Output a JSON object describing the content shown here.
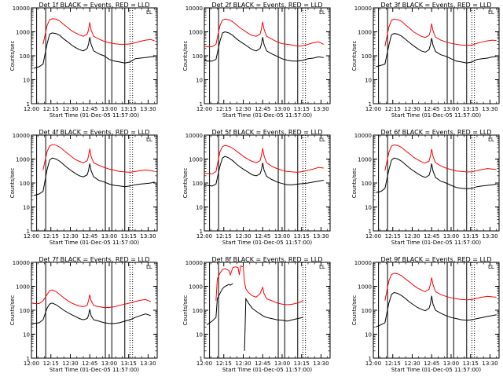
{
  "chart_data": {
    "type": "line",
    "layout": "3x3 grid",
    "common": {
      "ylabel": "Counts/sec",
      "xlabel": "Start Time (01-Dec-05 11:57:00)",
      "x_ticks": [
        "12:00",
        "12:15",
        "12:30",
        "12:45",
        "13:00",
        "13:15",
        "13:30"
      ],
      "y_ticks": [
        "1",
        "10",
        "100",
        "1000",
        "10000"
      ],
      "y_scale": "log",
      "ylim": [
        1,
        10000
      ],
      "xlim_minutes_after_1200": [
        0,
        97
      ],
      "legend_marker": "LL",
      "colors": {
        "events": "#000000",
        "lld": "#ff0000"
      }
    },
    "panels": [
      {
        "title": "Det 1f BLACK = Events, RED = LLD",
        "x": [
          2,
          6,
          9,
          12,
          14,
          16,
          19,
          22,
          25,
          28,
          31,
          34,
          37,
          40,
          43,
          44,
          45,
          46,
          48,
          52,
          56,
          60,
          64,
          68,
          72,
          76,
          80,
          84,
          88,
          92,
          95
        ],
        "events": [
          30,
          35,
          45,
          300,
          800,
          900,
          850,
          700,
          500,
          380,
          280,
          220,
          180,
          160,
          200,
          300,
          600,
          300,
          160,
          120,
          100,
          70,
          60,
          55,
          50,
          55,
          75,
          80,
          85,
          90,
          95
        ],
        "lld": [
          null,
          null,
          300,
          1800,
          3200,
          3500,
          3400,
          2800,
          2000,
          1500,
          1100,
          900,
          750,
          650,
          800,
          1200,
          2500,
          1200,
          650,
          500,
          400,
          350,
          320,
          300,
          300,
          310,
          350,
          400,
          450,
          480,
          420
        ]
      },
      {
        "title": "Det 2f BLACK = Events, RED = LLD",
        "x": [
          0,
          2,
          6,
          9,
          12,
          14,
          16,
          19,
          22,
          25,
          28,
          31,
          34,
          37,
          40,
          43,
          44,
          45,
          46,
          48,
          52,
          56,
          60,
          64,
          68,
          72,
          76,
          80,
          84,
          88,
          92
        ],
        "events": [
          70,
          60,
          60,
          70,
          400,
          900,
          1000,
          900,
          700,
          500,
          380,
          300,
          230,
          180,
          160,
          200,
          300,
          600,
          300,
          160,
          120,
          95,
          75,
          65,
          60,
          60,
          65,
          75,
          80,
          90,
          85
        ],
        "lld": [
          250,
          240,
          240,
          300,
          1800,
          3100,
          3400,
          3200,
          2600,
          1900,
          1400,
          1100,
          850,
          700,
          650,
          800,
          1300,
          2600,
          1300,
          650,
          500,
          380,
          320,
          300,
          280,
          250,
          260,
          300,
          350,
          380,
          300
        ]
      },
      {
        "title": "Det 3f BLACK = Events, RED = LLD",
        "x": [
          2,
          6,
          9,
          12,
          14,
          16,
          19,
          22,
          25,
          28,
          31,
          34,
          37,
          40,
          43,
          44,
          45,
          46,
          48,
          52,
          56,
          60,
          64,
          68,
          72,
          76,
          80,
          84,
          88,
          92,
          95
        ],
        "events": [
          35,
          40,
          45,
          280,
          750,
          850,
          800,
          650,
          480,
          350,
          260,
          200,
          160,
          140,
          180,
          280,
          550,
          280,
          150,
          110,
          95,
          75,
          60,
          55,
          50,
          55,
          70,
          75,
          80,
          90,
          95
        ],
        "lld": [
          null,
          null,
          250,
          1600,
          3000,
          3400,
          3200,
          2700,
          1900,
          1400,
          1000,
          800,
          650,
          580,
          700,
          1100,
          2200,
          1100,
          600,
          450,
          380,
          330,
          300,
          280,
          270,
          280,
          330,
          380,
          420,
          450,
          430
        ]
      },
      {
        "title": "Det 4f BLACK = Events, RED = LLD",
        "x": [
          2,
          6,
          9,
          12,
          14,
          16,
          19,
          22,
          25,
          28,
          31,
          34,
          37,
          40,
          43,
          44,
          45,
          46,
          48,
          52,
          56,
          60,
          64,
          68,
          72,
          76,
          80,
          84,
          88,
          92,
          95
        ],
        "events": [
          30,
          35,
          45,
          350,
          900,
          1100,
          1000,
          800,
          580,
          420,
          320,
          250,
          200,
          180,
          220,
          330,
          650,
          330,
          180,
          130,
          110,
          90,
          80,
          75,
          70,
          75,
          85,
          90,
          95,
          100,
          110
        ],
        "lld": [
          null,
          null,
          350,
          2000,
          3500,
          4000,
          3800,
          3100,
          2300,
          1700,
          1250,
          950,
          800,
          700,
          850,
          1300,
          2700,
          1300,
          700,
          550,
          450,
          380,
          340,
          300,
          290,
          280,
          300,
          330,
          350,
          330,
          300
        ]
      },
      {
        "title": "Det 5f BLACK = Events, RED = LLD",
        "x": [
          0,
          2,
          6,
          9,
          12,
          14,
          16,
          19,
          22,
          25,
          28,
          31,
          34,
          37,
          40,
          43,
          44,
          45,
          46,
          48,
          52,
          56,
          60,
          64,
          68,
          72,
          76,
          80,
          84,
          88,
          92
        ],
        "events": [
          80,
          80,
          75,
          90,
          500,
          1100,
          1300,
          1100,
          850,
          600,
          450,
          350,
          280,
          220,
          200,
          240,
          350,
          700,
          350,
          190,
          140,
          110,
          95,
          85,
          85,
          90,
          95,
          100,
          110,
          120,
          130
        ],
        "lld": [
          260,
          250,
          240,
          300,
          2000,
          3300,
          3700,
          3400,
          2800,
          2100,
          1600,
          1200,
          950,
          800,
          700,
          850,
          1400,
          2800,
          1400,
          700,
          500,
          400,
          340,
          300,
          290,
          280,
          300,
          340,
          380,
          450,
          420
        ]
      },
      {
        "title": "Det 6f BLACK = Events, RED = LLD",
        "x": [
          2,
          6,
          9,
          12,
          14,
          16,
          19,
          22,
          25,
          28,
          31,
          34,
          37,
          40,
          43,
          44,
          45,
          46,
          48,
          52,
          56,
          60,
          64,
          68,
          72,
          76,
          80,
          84,
          88,
          92,
          95
        ],
        "events": [
          40,
          45,
          60,
          350,
          900,
          1100,
          1000,
          800,
          580,
          420,
          320,
          250,
          200,
          170,
          210,
          320,
          650,
          320,
          170,
          120,
          100,
          80,
          65,
          60,
          58,
          60,
          70,
          75,
          80,
          85,
          90
        ],
        "lld": [
          null,
          null,
          330,
          1900,
          3500,
          3900,
          3700,
          3000,
          2200,
          1650,
          1200,
          950,
          780,
          680,
          820,
          1300,
          2600,
          1300,
          700,
          520,
          420,
          360,
          320,
          300,
          290,
          290,
          330,
          370,
          400,
          380,
          360
        ]
      },
      {
        "title": "Det 7f BLACK = Events, RED = LLD",
        "x": [
          0,
          2,
          6,
          9,
          12,
          14,
          16,
          19,
          22,
          25,
          28,
          31,
          34,
          37,
          40,
          43,
          44,
          45,
          46,
          48,
          52,
          56,
          60,
          64,
          68,
          72,
          76,
          80,
          84,
          88,
          92
        ],
        "events": [
          25,
          28,
          30,
          40,
          120,
          180,
          200,
          170,
          130,
          100,
          80,
          65,
          55,
          45,
          40,
          45,
          60,
          110,
          60,
          40,
          35,
          30,
          28,
          28,
          30,
          35,
          40,
          50,
          60,
          70,
          60
        ],
        "lld": [
          200,
          190,
          190,
          250,
          450,
          650,
          700,
          600,
          450,
          330,
          250,
          200,
          170,
          150,
          140,
          160,
          250,
          450,
          250,
          160,
          140,
          130,
          130,
          140,
          160,
          180,
          200,
          230,
          260,
          280,
          230
        ]
      },
      {
        "title": "Det 8f BLACK = Events, RED = LLD",
        "x": [
          2,
          6,
          9,
          10,
          12,
          14,
          16,
          19,
          20,
          22,
          24,
          26,
          27,
          28,
          30,
          31,
          32,
          34,
          37,
          40,
          43,
          45,
          46,
          48,
          52,
          56,
          60,
          64,
          68,
          72,
          76
        ],
        "events": [
          25,
          35,
          50,
          300,
          500,
          800,
          1000,
          1200,
          1100,
          1300,
          null,
          null,
          null,
          null,
          null,
          2,
          300,
          200,
          120,
          90,
          70,
          60,
          55,
          50,
          45,
          40,
          38,
          35,
          40,
          45,
          50
        ],
        "lld": [
          null,
          null,
          250,
          2000,
          3500,
          5000,
          5500,
          4500,
          3000,
          6000,
          6500,
          6000,
          3000,
          7000,
          6500,
          1500,
          800,
          550,
          400,
          350,
          500,
          900,
          500,
          300,
          250,
          200,
          180,
          170,
          180,
          200,
          250
        ]
      },
      {
        "title": "Det 9f BLACK = Events, RED = LLD",
        "x": [
          2,
          6,
          9,
          12,
          14,
          16,
          19,
          22,
          25,
          28,
          31,
          34,
          37,
          40,
          43,
          44,
          45,
          46,
          48,
          52,
          56,
          60,
          64,
          68,
          72,
          76,
          80,
          84,
          88,
          92,
          95
        ],
        "events": [
          20,
          25,
          30,
          200,
          450,
          550,
          500,
          400,
          300,
          220,
          170,
          130,
          110,
          95,
          120,
          180,
          400,
          180,
          100,
          75,
          60,
          50,
          45,
          40,
          38,
          40,
          45,
          50,
          55,
          60,
          65
        ],
        "lld": [
          null,
          null,
          250,
          1700,
          3100,
          3500,
          3300,
          2700,
          2000,
          1500,
          1100,
          850,
          700,
          600,
          750,
          1200,
          2300,
          1200,
          600,
          450,
          380,
          330,
          300,
          280,
          270,
          280,
          320,
          350,
          380,
          360,
          350
        ]
      }
    ],
    "vertical_lines": {
      "solid_minutes": [
        4,
        11,
        57,
        62,
        72
      ],
      "dotted_minutes": [
        76,
        78
      ]
    }
  }
}
